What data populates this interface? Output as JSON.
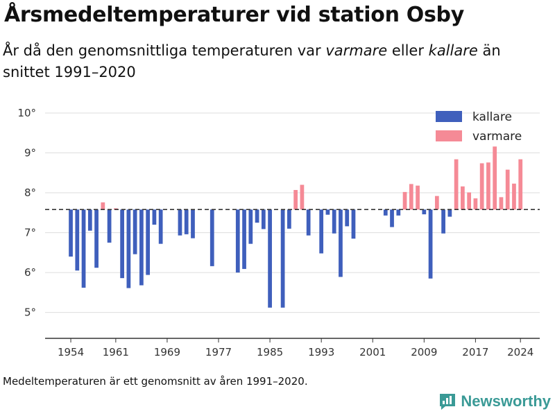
{
  "title": "Årsmedeltemperaturer vid station Osby",
  "subtitle": {
    "part1": "År då den genomsnittliga temperaturen var ",
    "warmer_word": "varmare",
    "part2": " eller ",
    "colder_word": "kallare",
    "part3": " än snittet 1991–2020"
  },
  "footnote": "Medeltemperaturen är ett genomsnitt av åren 1991–2020.",
  "brand": "Newsworthy",
  "colors": {
    "colder": "#3f5fbc",
    "warmer": "#f58a96",
    "axis": "#333333",
    "grid": "#dddddd",
    "brand": "#3a9a96"
  },
  "chart_data": {
    "type": "bar",
    "baseline": 7.58,
    "ylim": [
      4.35,
      10.4
    ],
    "xlim": [
      1950,
      2027
    ],
    "yticks": [
      5,
      6,
      7,
      8,
      9,
      10
    ],
    "ytick_labels": [
      "5°",
      "6°",
      "7°",
      "8°",
      "9°",
      "10°"
    ],
    "xticks": [
      1954,
      1961,
      1969,
      1977,
      1985,
      1993,
      2001,
      2009,
      2017,
      2024
    ],
    "grid": true,
    "legend": {
      "placement": "top-right",
      "entries": [
        {
          "key": "colder",
          "label": "kallare"
        },
        {
          "key": "warmer",
          "label": "varmare"
        }
      ]
    },
    "series": [
      {
        "key": "colder",
        "name": "kallare",
        "points": [
          [
            1954,
            6.4
          ],
          [
            1955,
            6.05
          ],
          [
            1956,
            5.62
          ],
          [
            1957,
            7.05
          ],
          [
            1958,
            6.12
          ],
          [
            1960,
            6.75
          ],
          [
            1962,
            5.86
          ],
          [
            1963,
            5.61
          ],
          [
            1964,
            6.46
          ],
          [
            1965,
            5.68
          ],
          [
            1966,
            5.94
          ],
          [
            1967,
            7.2
          ],
          [
            1968,
            6.72
          ],
          [
            1971,
            6.93
          ],
          [
            1972,
            6.96
          ],
          [
            1973,
            6.86
          ],
          [
            1976,
            6.16
          ],
          [
            1980,
            6.0
          ],
          [
            1981,
            6.09
          ],
          [
            1982,
            6.72
          ],
          [
            1983,
            7.25
          ],
          [
            1984,
            7.09
          ],
          [
            1985,
            5.12
          ],
          [
            1987,
            5.12
          ],
          [
            1988,
            7.1
          ],
          [
            1991,
            6.93
          ],
          [
            1993,
            6.48
          ],
          [
            1994,
            7.45
          ],
          [
            1995,
            6.98
          ],
          [
            1996,
            5.89
          ],
          [
            1997,
            7.16
          ],
          [
            1998,
            6.85
          ],
          [
            2003,
            7.43
          ],
          [
            2004,
            7.14
          ],
          [
            2005,
            7.43
          ],
          [
            2009,
            7.46
          ],
          [
            2010,
            5.85
          ],
          [
            2012,
            6.98
          ],
          [
            2013,
            7.4
          ]
        ]
      },
      {
        "key": "warmer",
        "name": "varmare",
        "points": [
          [
            1959,
            7.76
          ],
          [
            1961,
            7.61
          ],
          [
            1989,
            8.07
          ],
          [
            1990,
            8.2
          ],
          [
            2006,
            8.02
          ],
          [
            2007,
            8.22
          ],
          [
            2008,
            8.18
          ],
          [
            2011,
            7.92
          ],
          [
            2014,
            8.84
          ],
          [
            2015,
            8.16
          ],
          [
            2016,
            8.01
          ],
          [
            2017,
            7.86
          ],
          [
            2018,
            8.74
          ],
          [
            2019,
            8.76
          ],
          [
            2020,
            9.16
          ],
          [
            2021,
            7.89
          ],
          [
            2022,
            8.58
          ],
          [
            2023,
            8.23
          ],
          [
            2024,
            8.84
          ]
        ]
      }
    ]
  }
}
